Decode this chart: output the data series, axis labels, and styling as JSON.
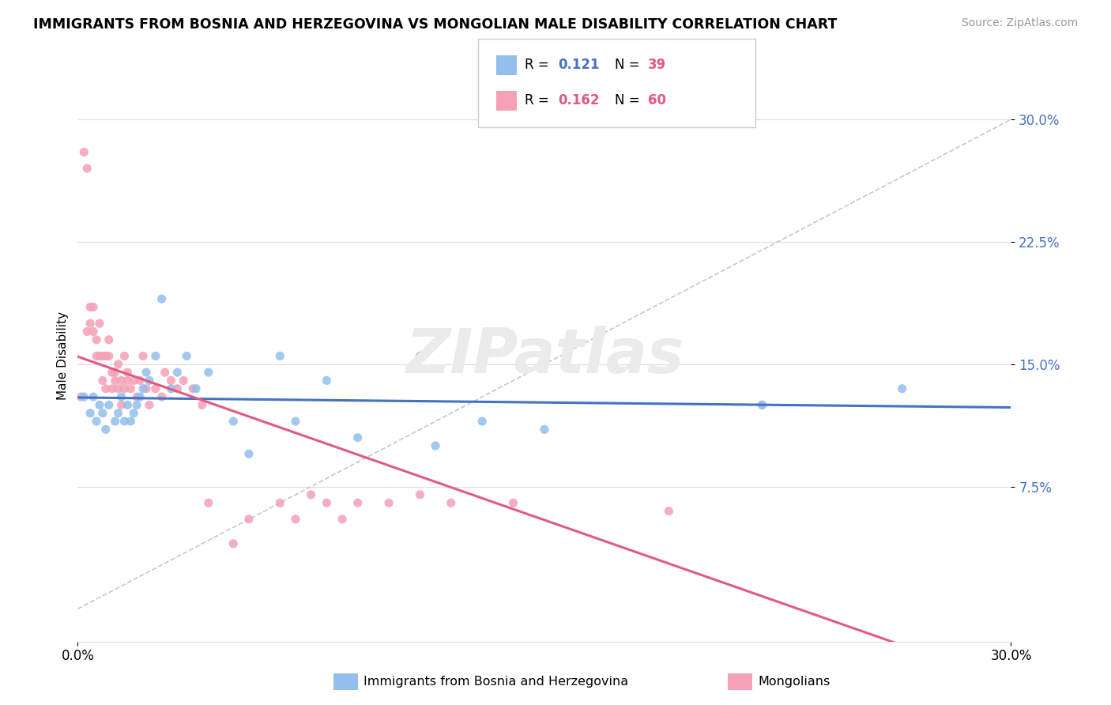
{
  "title": "IMMIGRANTS FROM BOSNIA AND HERZEGOVINA VS MONGOLIAN MALE DISABILITY CORRELATION CHART",
  "source": "Source: ZipAtlas.com",
  "ylabel": "Male Disability",
  "watermark": "ZIPatlas",
  "xlim": [
    0.0,
    0.3
  ],
  "ylim": [
    -0.02,
    0.33
  ],
  "yticks": [
    0.075,
    0.15,
    0.225,
    0.3
  ],
  "ytick_labels": [
    "7.5%",
    "15.0%",
    "22.5%",
    "30.0%"
  ],
  "color_bosnia": "#92BFED",
  "color_mongolia": "#F4A0B5",
  "trendline_color_bosnia": "#4472C4",
  "trendline_color_mongolia": "#E05B80",
  "trendline_dashed_color": "#C8C8C8",
  "bosnia_label": "Immigrants from Bosnia and Herzegovina",
  "mongolia_label": "Mongolians",
  "bosnia_scatter_x": [
    0.002,
    0.004,
    0.005,
    0.006,
    0.007,
    0.008,
    0.009,
    0.01,
    0.012,
    0.013,
    0.014,
    0.015,
    0.016,
    0.017,
    0.018,
    0.019,
    0.02,
    0.021,
    0.022,
    0.023,
    0.025,
    0.027,
    0.03,
    0.032,
    0.035,
    0.038,
    0.042,
    0.05,
    0.055,
    0.065,
    0.07,
    0.08,
    0.09,
    0.11,
    0.115,
    0.13,
    0.15,
    0.22,
    0.265
  ],
  "bosnia_scatter_y": [
    0.13,
    0.12,
    0.13,
    0.115,
    0.125,
    0.12,
    0.11,
    0.125,
    0.115,
    0.12,
    0.13,
    0.115,
    0.125,
    0.115,
    0.12,
    0.125,
    0.13,
    0.135,
    0.145,
    0.14,
    0.155,
    0.19,
    0.135,
    0.145,
    0.155,
    0.135,
    0.145,
    0.115,
    0.095,
    0.155,
    0.115,
    0.14,
    0.105,
    0.155,
    0.1,
    0.115,
    0.11,
    0.125,
    0.135
  ],
  "mongolia_scatter_x": [
    0.001,
    0.002,
    0.003,
    0.003,
    0.004,
    0.004,
    0.005,
    0.005,
    0.006,
    0.006,
    0.007,
    0.007,
    0.008,
    0.008,
    0.009,
    0.009,
    0.01,
    0.01,
    0.011,
    0.011,
    0.012,
    0.012,
    0.013,
    0.013,
    0.014,
    0.014,
    0.015,
    0.015,
    0.016,
    0.016,
    0.017,
    0.018,
    0.019,
    0.02,
    0.021,
    0.022,
    0.023,
    0.025,
    0.027,
    0.028,
    0.03,
    0.032,
    0.034,
    0.037,
    0.04,
    0.042,
    0.05,
    0.055,
    0.065,
    0.07,
    0.075,
    0.08,
    0.085,
    0.09,
    0.1,
    0.11,
    0.12,
    0.14,
    0.19,
    0.22
  ],
  "mongolia_scatter_y": [
    0.13,
    0.28,
    0.27,
    0.17,
    0.175,
    0.185,
    0.17,
    0.185,
    0.165,
    0.155,
    0.175,
    0.155,
    0.155,
    0.14,
    0.155,
    0.135,
    0.155,
    0.165,
    0.135,
    0.145,
    0.145,
    0.14,
    0.135,
    0.15,
    0.14,
    0.125,
    0.155,
    0.135,
    0.14,
    0.145,
    0.135,
    0.14,
    0.13,
    0.14,
    0.155,
    0.135,
    0.125,
    0.135,
    0.13,
    0.145,
    0.14,
    0.135,
    0.14,
    0.135,
    0.125,
    0.065,
    0.04,
    0.055,
    0.065,
    0.055,
    0.07,
    0.065,
    0.055,
    0.065,
    0.065,
    0.07,
    0.065,
    0.065,
    0.06,
    0.125
  ]
}
